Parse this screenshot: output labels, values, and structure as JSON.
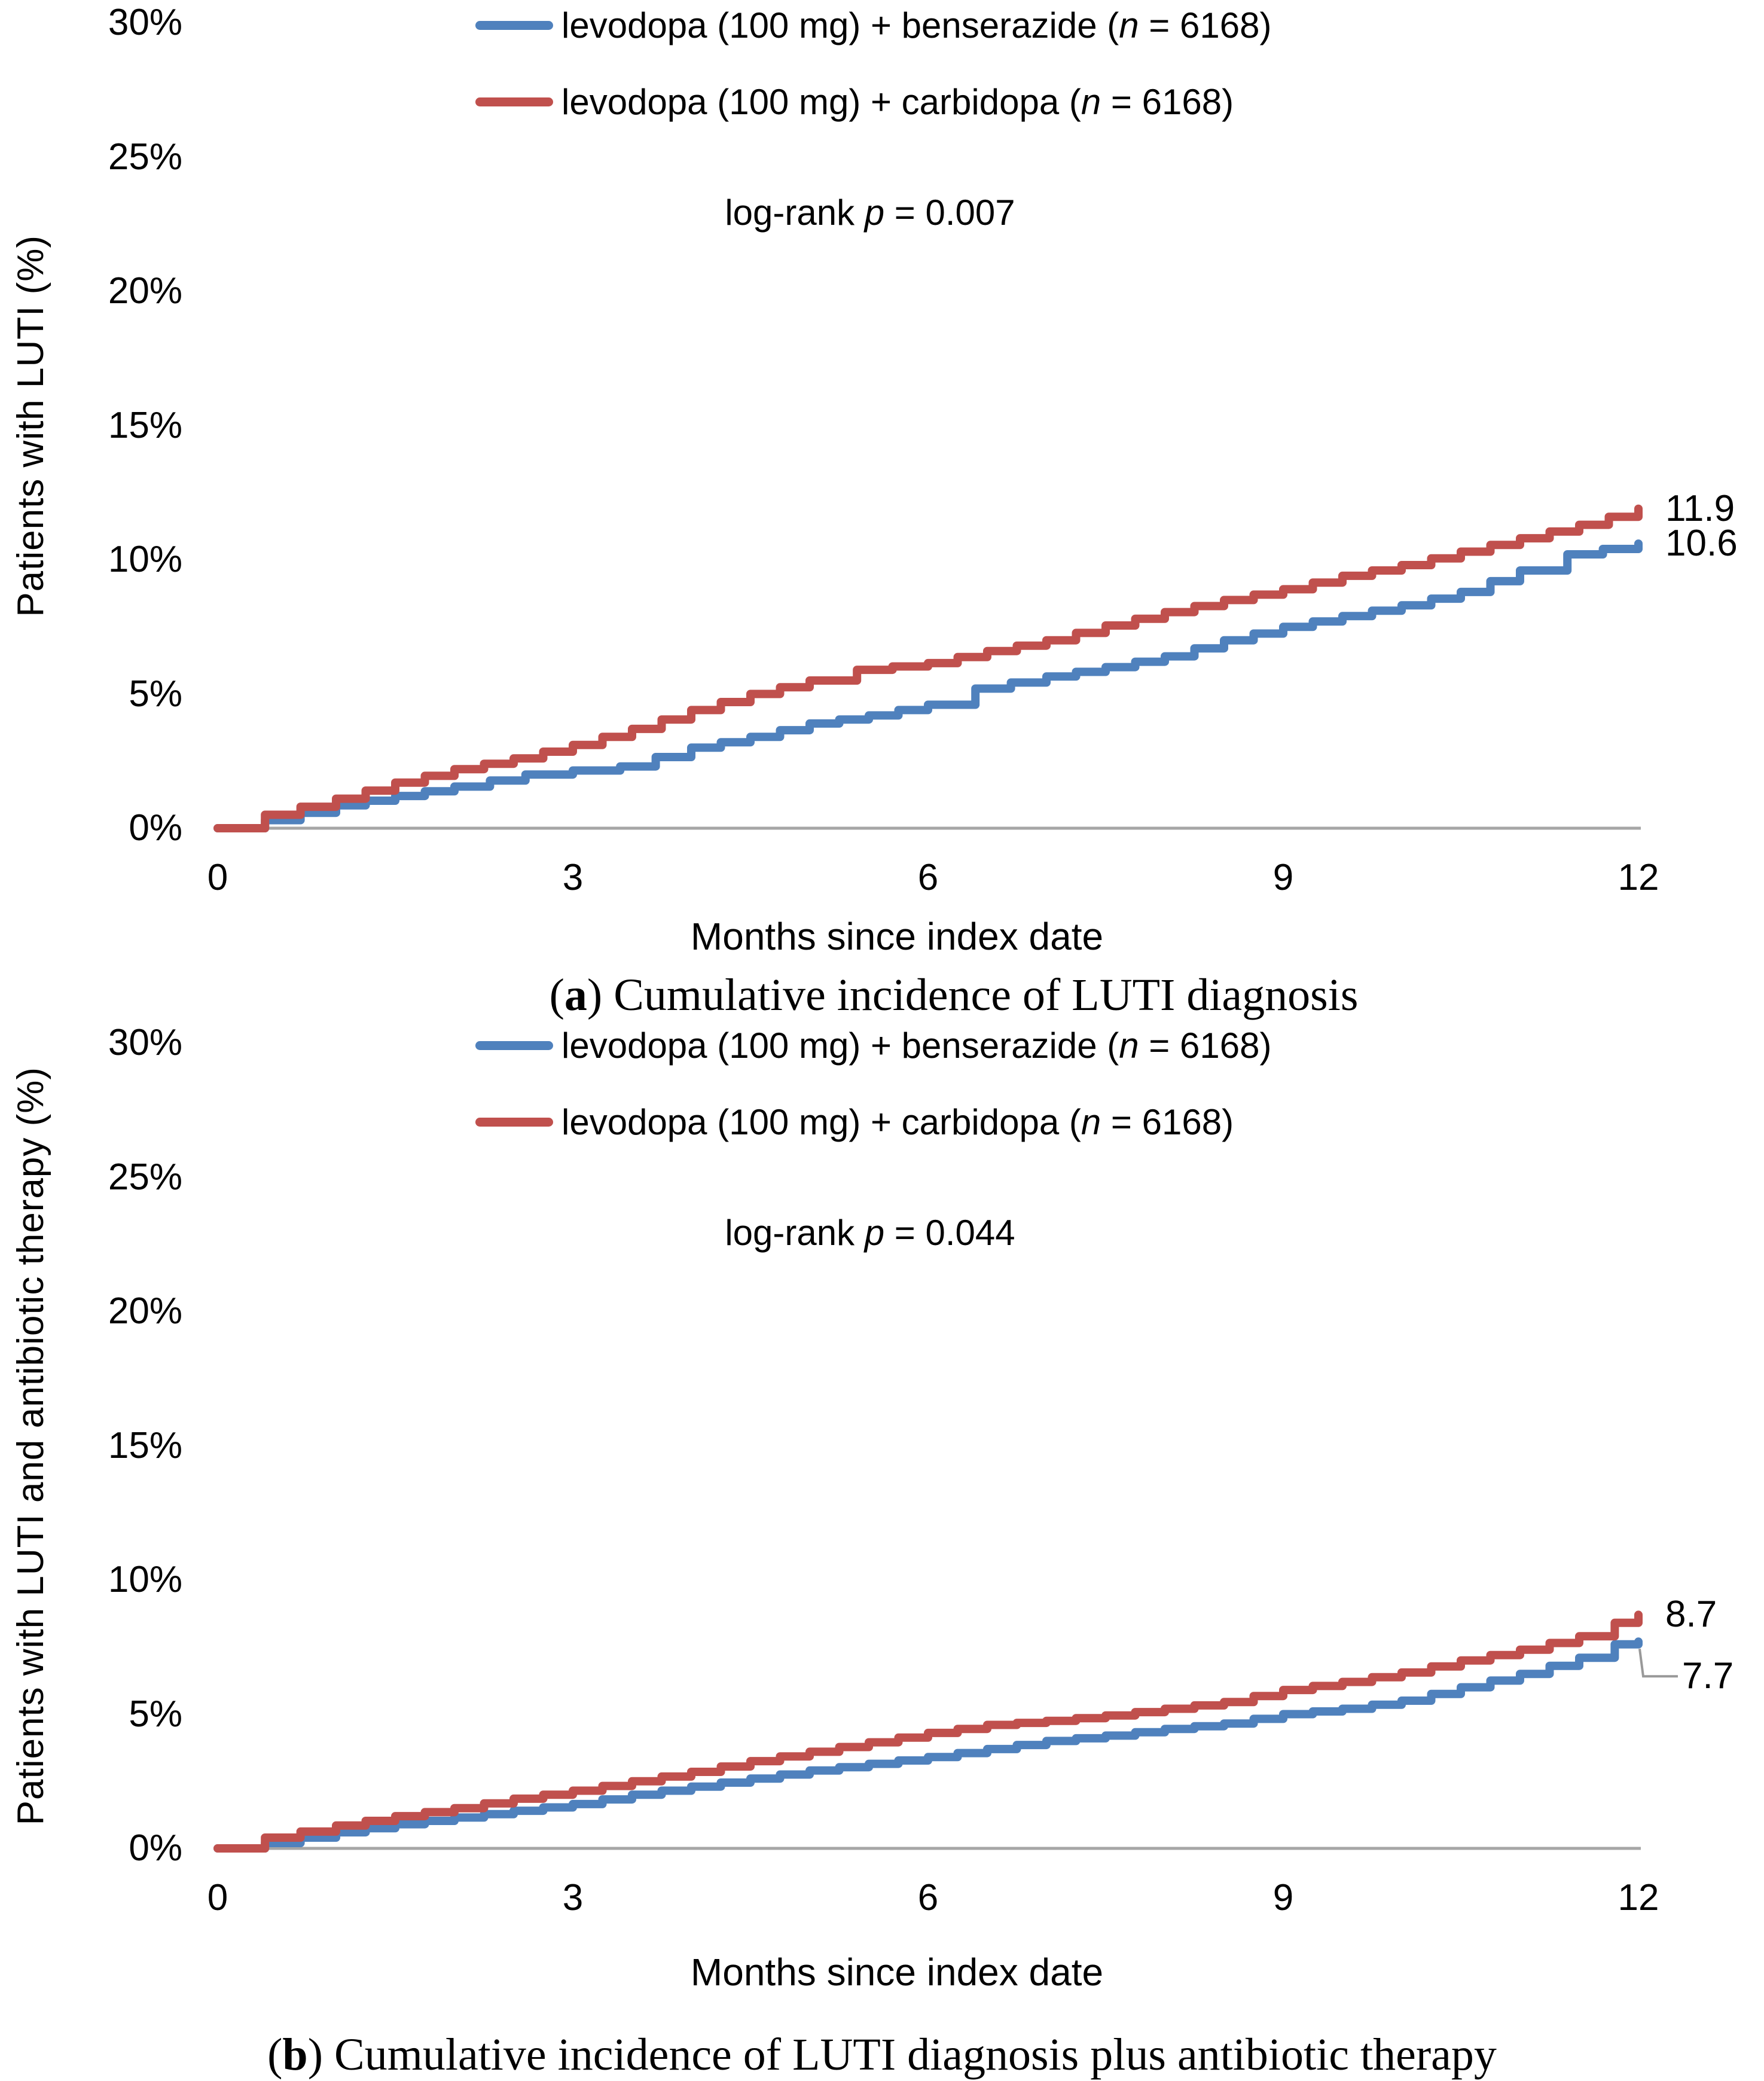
{
  "colors": {
    "benserazide_blue": "#4F81BD",
    "carbidopa_red": "#C0504D",
    "axis_gray": "#A6A6A6",
    "leader_gray": "#999999",
    "text_black": "#000000",
    "background": "#FFFFFF"
  },
  "legend": {
    "items": [
      {
        "pre": "levodopa (100 mg) + benserazide (",
        "n_sym": "n",
        "post": " = 6168)",
        "color": "#4F81BD"
      },
      {
        "pre": "levodopa (100 mg) + carbidopa (",
        "n_sym": "n",
        "post": " = 6168)",
        "color": "#C0504D"
      }
    ]
  },
  "chart_data": [
    {
      "type": "line",
      "panel_letter": "a",
      "caption_open": "(",
      "caption_close": ") ",
      "caption_text": "Cumulative incidence of LUTI diagnosis",
      "annotation": {
        "prefix": "log-rank ",
        "sym": "p",
        "rest": " = 0.007"
      },
      "xlabel": "Months since index date",
      "ylabel": "Patients with LUTI (%)",
      "xlim": [
        0,
        12
      ],
      "ylim_pct": [
        0,
        30
      ],
      "grid": false,
      "legend_position": "top-inside",
      "x_ticks": [
        {
          "label": "0",
          "value": 0
        },
        {
          "label": "3",
          "value": 3
        },
        {
          "label": "6",
          "value": 6
        },
        {
          "label": "9",
          "value": 9
        },
        {
          "label": "12",
          "value": 12
        }
      ],
      "y_ticks": [
        {
          "label": "30%",
          "value": 30
        },
        {
          "label": "25%",
          "value": 25
        },
        {
          "label": "20%",
          "value": 20
        },
        {
          "label": "15%",
          "value": 15
        },
        {
          "label": "10%",
          "value": 10
        },
        {
          "label": "5%",
          "value": 5
        },
        {
          "label": "0%",
          "value": 0
        }
      ],
      "series": [
        {
          "name": "levodopa (100 mg) + benserazide (n = 6168)",
          "color": "#4F81BD",
          "end_label": "10.6",
          "points": [
            [
              0,
              0
            ],
            [
              0.4,
              0.3
            ],
            [
              1,
              0.85
            ],
            [
              1.5,
              1.2
            ],
            [
              2,
              1.55
            ],
            [
              2.6,
              2.0
            ],
            [
              3.4,
              2.3
            ],
            [
              4,
              3.0
            ],
            [
              4.5,
              3.4
            ],
            [
              5,
              3.9
            ],
            [
              5.5,
              4.2
            ],
            [
              6,
              4.6
            ],
            [
              6.4,
              5.2
            ],
            [
              7,
              5.65
            ],
            [
              7.5,
              6.0
            ],
            [
              8,
              6.4
            ],
            [
              8.5,
              7.0
            ],
            [
              9,
              7.5
            ],
            [
              9.5,
              7.9
            ],
            [
              10,
              8.3
            ],
            [
              10.5,
              8.8
            ],
            [
              11,
              9.6
            ],
            [
              11.4,
              10.2
            ],
            [
              12,
              10.6
            ]
          ]
        },
        {
          "name": "levodopa (100 mg) + carbidopa (n = 6168)",
          "color": "#C0504D",
          "end_label": "11.9",
          "points": [
            [
              0,
              0
            ],
            [
              0.4,
              0.5
            ],
            [
              1,
              1.1
            ],
            [
              1.5,
              1.7
            ],
            [
              2,
              2.2
            ],
            [
              2.5,
              2.6
            ],
            [
              3,
              3.1
            ],
            [
              3.5,
              3.7
            ],
            [
              4,
              4.4
            ],
            [
              4.5,
              5.0
            ],
            [
              5,
              5.5
            ],
            [
              5.4,
              5.9
            ],
            [
              6,
              6.15
            ],
            [
              6.5,
              6.6
            ],
            [
              7,
              7.0
            ],
            [
              7.5,
              7.55
            ],
            [
              8,
              8.05
            ],
            [
              8.5,
              8.5
            ],
            [
              9,
              8.9
            ],
            [
              9.5,
              9.4
            ],
            [
              10,
              9.8
            ],
            [
              10.5,
              10.3
            ],
            [
              11,
              10.8
            ],
            [
              11.5,
              11.3
            ],
            [
              12,
              11.9
            ]
          ]
        }
      ]
    },
    {
      "type": "line",
      "panel_letter": "b",
      "caption_open": "(",
      "caption_close": ") ",
      "caption_text": "Cumulative incidence of LUTI diagnosis plus antibiotic therapy",
      "annotation": {
        "prefix": "log-rank ",
        "sym": "p",
        "rest": " = 0.044"
      },
      "xlabel": "Months since index date",
      "ylabel": "Patients with LUTI and antibiotic therapy (%)",
      "xlim": [
        0,
        12
      ],
      "ylim_pct": [
        0,
        30
      ],
      "grid": false,
      "legend_position": "top-inside",
      "x_ticks": [
        {
          "label": "0",
          "value": 0
        },
        {
          "label": "3",
          "value": 3
        },
        {
          "label": "6",
          "value": 6
        },
        {
          "label": "9",
          "value": 9
        },
        {
          "label": "12",
          "value": 12
        }
      ],
      "y_ticks": [
        {
          "label": "30%",
          "value": 30
        },
        {
          "label": "25%",
          "value": 25
        },
        {
          "label": "20%",
          "value": 20
        },
        {
          "label": "15%",
          "value": 15
        },
        {
          "label": "10%",
          "value": 10
        },
        {
          "label": "5%",
          "value": 5
        },
        {
          "label": "0%",
          "value": 0
        }
      ],
      "series": [
        {
          "name": "levodopa (100 mg) + benserazide (n = 6168)",
          "color": "#4F81BD",
          "end_label": "7.7",
          "leader_line": true,
          "label_dx": 28,
          "label_dy": 58,
          "points": [
            [
              0,
              0
            ],
            [
              0.4,
              0.2
            ],
            [
              1,
              0.6
            ],
            [
              1.5,
              0.9
            ],
            [
              2,
              1.15
            ],
            [
              2.5,
              1.4
            ],
            [
              3,
              1.65
            ],
            [
              3.5,
              2.0
            ],
            [
              4,
              2.3
            ],
            [
              4.5,
              2.6
            ],
            [
              5,
              2.9
            ],
            [
              5.5,
              3.15
            ],
            [
              6,
              3.4
            ],
            [
              6.5,
              3.7
            ],
            [
              7,
              4.0
            ],
            [
              7.5,
              4.2
            ],
            [
              8,
              4.45
            ],
            [
              8.5,
              4.65
            ],
            [
              9,
              5.0
            ],
            [
              9.5,
              5.2
            ],
            [
              10,
              5.5
            ],
            [
              10.5,
              6.0
            ],
            [
              11,
              6.5
            ],
            [
              11.5,
              7.1
            ],
            [
              11.8,
              7.6
            ],
            [
              12,
              7.7
            ]
          ]
        },
        {
          "name": "levodopa (100 mg) + carbidopa (n = 6168)",
          "color": "#C0504D",
          "end_label": "8.7",
          "points": [
            [
              0,
              0
            ],
            [
              0.4,
              0.4
            ],
            [
              1,
              0.85
            ],
            [
              1.5,
              1.2
            ],
            [
              2,
              1.5
            ],
            [
              2.5,
              1.85
            ],
            [
              3,
              2.15
            ],
            [
              3.5,
              2.5
            ],
            [
              4,
              2.85
            ],
            [
              4.5,
              3.25
            ],
            [
              5,
              3.6
            ],
            [
              5.5,
              3.95
            ],
            [
              6,
              4.3
            ],
            [
              6.5,
              4.6
            ],
            [
              7,
              4.75
            ],
            [
              7.5,
              4.95
            ],
            [
              8,
              5.2
            ],
            [
              8.5,
              5.45
            ],
            [
              9,
              5.9
            ],
            [
              9.5,
              6.2
            ],
            [
              10,
              6.55
            ],
            [
              10.5,
              7.0
            ],
            [
              11,
              7.4
            ],
            [
              11.5,
              7.9
            ],
            [
              11.8,
              8.4
            ],
            [
              12,
              8.7
            ]
          ]
        }
      ]
    }
  ]
}
